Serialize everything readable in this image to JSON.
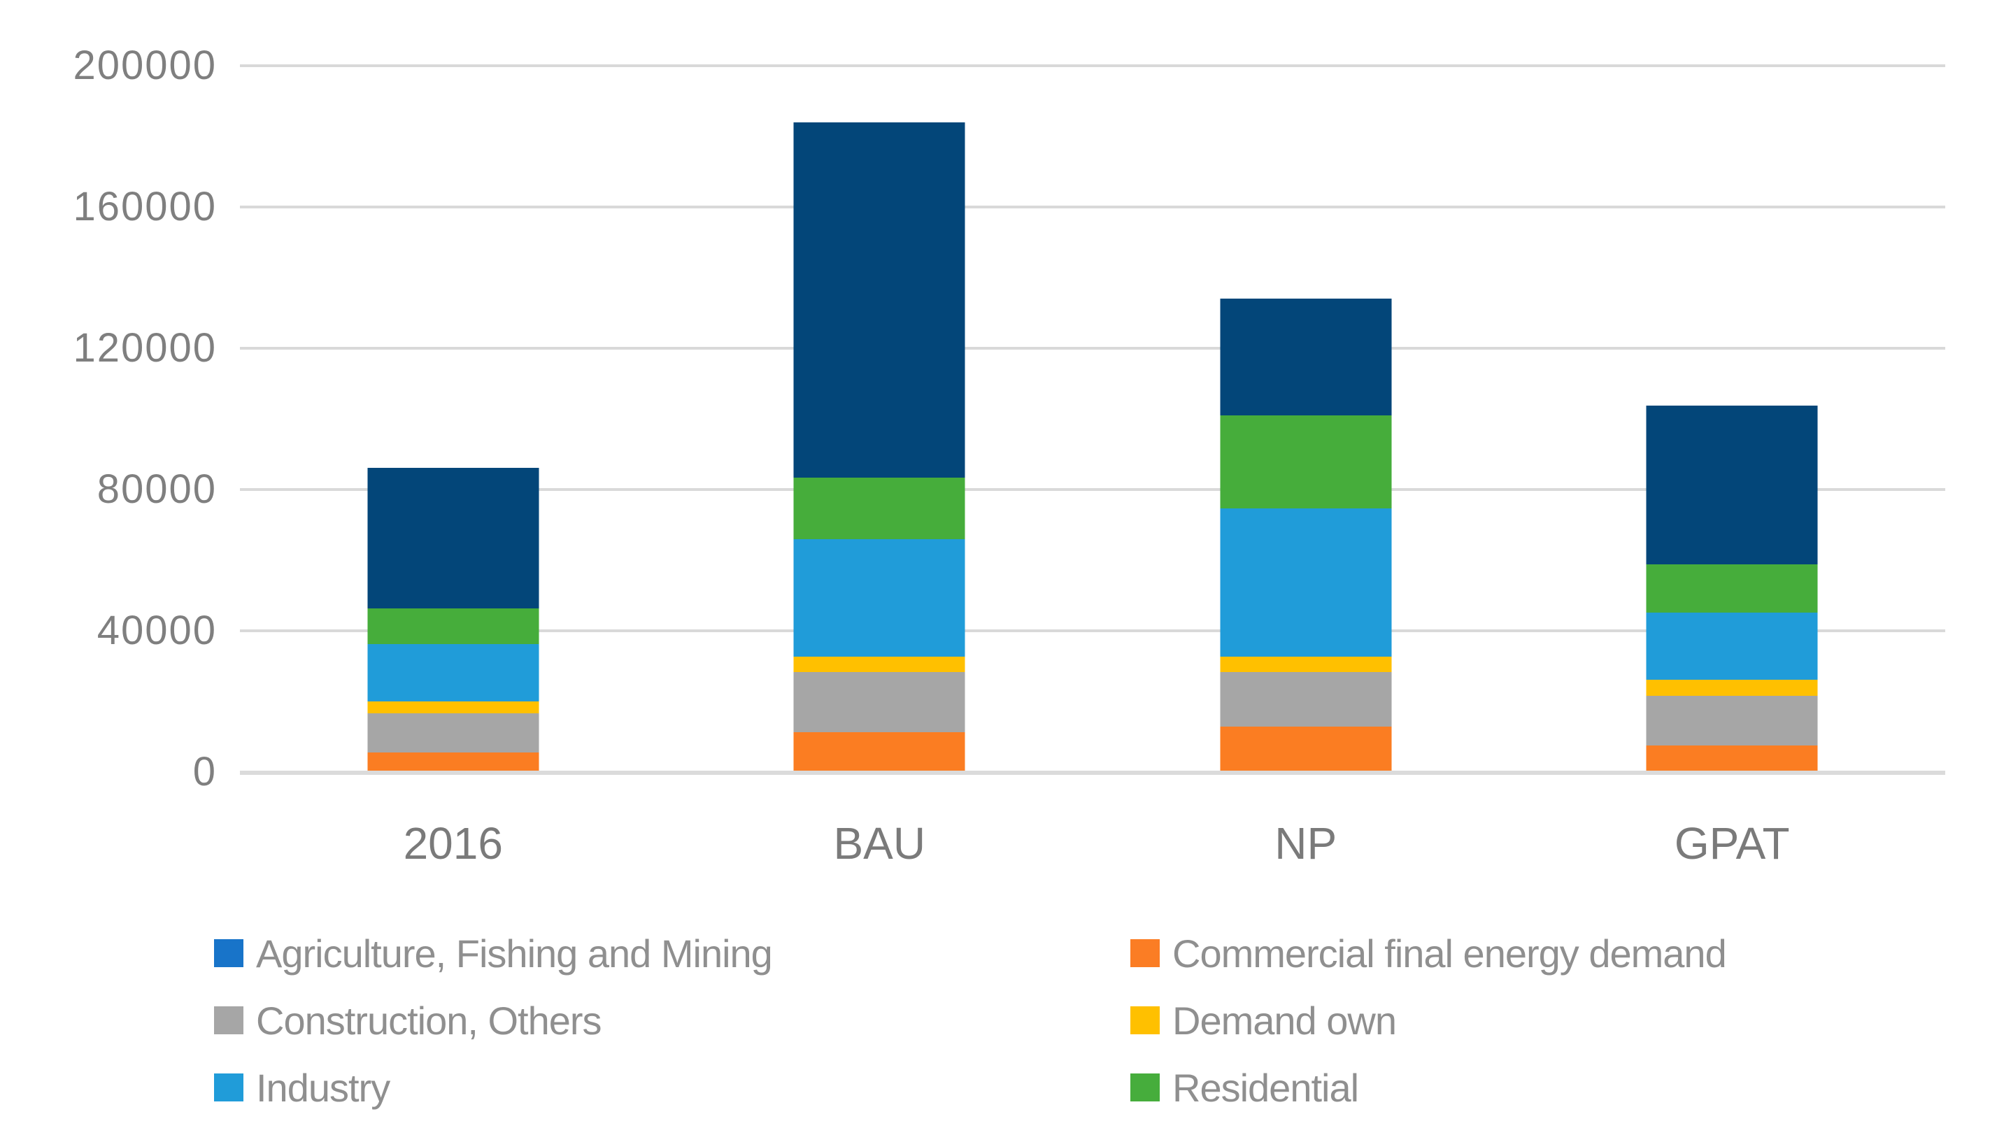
{
  "chart_data": {
    "type": "bar",
    "stacked": true,
    "title": "",
    "xlabel": "",
    "ylabel": "",
    "categories": [
      "2016",
      "BAU",
      "NP",
      "GPAT"
    ],
    "series": [
      {
        "name": "Commercial final energy demand",
        "color": "#FB7D22",
        "values": [
          5500,
          11200,
          12900,
          7500
        ]
      },
      {
        "name": "Construction, Others",
        "color": "#A6A6A6",
        "values": [
          11200,
          17200,
          15400,
          14100
        ]
      },
      {
        "name": "Demand own",
        "color": "#FFC000",
        "values": [
          3400,
          4300,
          4400,
          4500
        ]
      },
      {
        "name": "Industry",
        "color": "#209CD9",
        "values": [
          16100,
          33300,
          42000,
          19100
        ]
      },
      {
        "name": "Residential",
        "color": "#46AD3B",
        "values": [
          10100,
          17400,
          26300,
          13600
        ]
      },
      {
        "name": "Agriculture, Fishing and Mining",
        "color": "#034679",
        "values": [
          39800,
          100500,
          33000,
          45000
        ]
      }
    ],
    "totals": [
      86100,
      183900,
      134000,
      103800
    ],
    "ylim": [
      0,
      200000
    ],
    "ytick_interval": 40000,
    "yticks": [
      {
        "value": 0,
        "label": "0"
      },
      {
        "value": 40000,
        "label": "40000"
      },
      {
        "value": 80000,
        "label": "80000"
      },
      {
        "value": 120000,
        "label": "120000"
      },
      {
        "value": 160000,
        "label": "160000"
      },
      {
        "value": 200000,
        "label": "200000"
      }
    ],
    "grid": "horizontal",
    "legend_position": "bottom"
  },
  "legend": {
    "columns": [
      {
        "items": [
          {
            "label": "Agriculture, Fishing and Mining",
            "swatch": "#1874C9"
          },
          {
            "label": "Construction, Others",
            "swatch": "#A6A6A6"
          },
          {
            "label": "Industry",
            "swatch": "#209CD9"
          }
        ]
      },
      {
        "items": [
          {
            "label": "Commercial final energy demand",
            "swatch": "#FB7D24"
          },
          {
            "label": "Demand own",
            "swatch": "#FFC000"
          },
          {
            "label": "Residential",
            "swatch": "#46AD3C"
          }
        ]
      }
    ]
  },
  "colors": {
    "background": "#FFFFFF",
    "gridline": "#D9D9D9",
    "axis_line": "#DBDBDB",
    "axis_text": "#7F7F7F",
    "legend_text": "#8F8F8F"
  }
}
